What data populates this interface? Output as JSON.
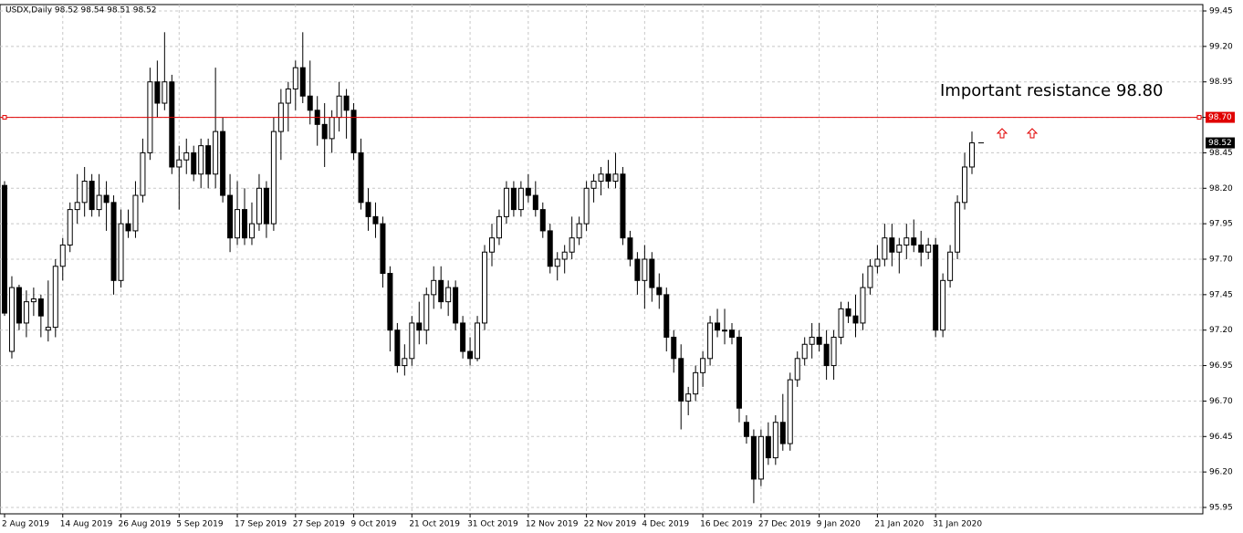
{
  "chart_data": {
    "type": "candlestick",
    "title": "USDX,Daily  98.52 98.54 98.51 98.52",
    "categories": [
      "2 Aug 2019",
      null,
      null,
      null,
      null,
      null,
      null,
      null,
      "14 Aug 2019",
      null,
      null,
      null,
      null,
      null,
      null,
      null,
      "26 Aug 2019",
      null,
      null,
      null,
      null,
      null,
      null,
      null,
      "5 Sep 2019",
      null,
      null,
      null,
      null,
      null,
      null,
      null,
      "17 Sep 2019",
      null,
      null,
      null,
      null,
      null,
      null,
      null,
      "27 Sep 2019",
      null,
      null,
      null,
      null,
      null,
      null,
      null,
      "9 Oct 2019",
      null,
      null,
      null,
      null,
      null,
      null,
      null,
      "21 Oct 2019",
      null,
      null,
      null,
      null,
      null,
      null,
      null,
      "31 Oct 2019",
      null,
      null,
      null,
      null,
      null,
      null,
      null,
      "12 Nov 2019",
      null,
      null,
      null,
      null,
      null,
      null,
      null,
      "22 Nov 2019",
      null,
      null,
      null,
      null,
      null,
      null,
      null,
      "4 Dec 2019",
      null,
      null,
      null,
      null,
      null,
      null,
      null,
      "16 Dec 2019",
      null,
      null,
      null,
      null,
      null,
      null,
      null,
      "27 Dec 2019",
      null,
      null,
      null,
      null,
      null,
      null,
      null,
      "9 Jan 2020",
      null,
      null,
      null,
      null,
      null,
      null,
      null,
      "21 Jan 2020",
      null,
      null,
      null,
      null,
      null,
      null,
      null,
      "31 Jan 2020",
      null,
      null,
      null,
      null,
      null
    ],
    "open": [
      98.22,
      97.05,
      97.5,
      97.25,
      97.4,
      97.42,
      97.2,
      97.22,
      97.65,
      97.8,
      98.05,
      98.1,
      98.25,
      98.05,
      98.15,
      98.1,
      97.55,
      97.95,
      97.9,
      98.15,
      98.45,
      98.95,
      98.8,
      98.95,
      98.35,
      98.4,
      98.45,
      98.3,
      98.5,
      98.3,
      98.6,
      98.15,
      97.85,
      98.05,
      97.85,
      97.95,
      98.2,
      97.95,
      98.6,
      98.8,
      98.9,
      99.05,
      98.85,
      98.75,
      98.65,
      98.55,
      98.7,
      98.85,
      98.75,
      98.45,
      98.1,
      98.0,
      97.95,
      97.6,
      97.2,
      96.95,
      97.0,
      97.25,
      97.2,
      97.45,
      97.55,
      97.4,
      97.5,
      97.25,
      97.05,
      97.0,
      97.25,
      97.75,
      97.85,
      98.0,
      98.2,
      98.05,
      98.2,
      98.15,
      98.05,
      97.9,
      97.65,
      97.7,
      97.75,
      97.85,
      97.95,
      98.2,
      98.25,
      98.3,
      98.25,
      98.3,
      97.85,
      97.7,
      97.55,
      97.7,
      97.5,
      97.45,
      97.15,
      97.0,
      96.7,
      96.75,
      96.9,
      97.0,
      97.25,
      97.2,
      97.2,
      97.15,
      96.55,
      96.45,
      96.15,
      96.45,
      96.3,
      96.55,
      96.4,
      96.85,
      97.0,
      97.1,
      97.15,
      97.1,
      96.95,
      97.15,
      97.35,
      97.3,
      97.25,
      97.5,
      97.65,
      97.7,
      97.85,
      97.75,
      97.8,
      97.85,
      97.8,
      97.75,
      97.8,
      97.2,
      97.55,
      97.75,
      98.1,
      98.35
    ],
    "high": [
      98.25,
      97.58,
      97.52,
      97.48,
      97.5,
      97.45,
      97.55,
      97.7,
      97.85,
      98.1,
      98.3,
      98.35,
      98.3,
      98.3,
      98.25,
      98.15,
      98.05,
      98.05,
      98.25,
      98.55,
      99.05,
      99.1,
      99.3,
      99.0,
      98.5,
      98.55,
      98.5,
      98.55,
      98.55,
      99.05,
      98.7,
      98.3,
      98.25,
      98.2,
      98.1,
      98.3,
      98.25,
      98.7,
      98.9,
      98.95,
      99.1,
      99.3,
      99.1,
      98.85,
      98.8,
      98.75,
      98.95,
      98.9,
      98.8,
      98.55,
      98.2,
      98.1,
      98.0,
      97.65,
      97.25,
      97.1,
      97.3,
      97.4,
      97.5,
      97.65,
      97.65,
      97.55,
      97.55,
      97.3,
      97.15,
      97.3,
      97.8,
      97.95,
      98.05,
      98.25,
      98.25,
      98.25,
      98.3,
      98.25,
      98.1,
      97.95,
      97.75,
      97.8,
      98.0,
      98.0,
      98.25,
      98.3,
      98.35,
      98.4,
      98.45,
      98.35,
      97.9,
      97.75,
      97.8,
      97.75,
      97.6,
      97.5,
      97.2,
      97.1,
      96.8,
      96.95,
      97.05,
      97.3,
      97.35,
      97.35,
      97.25,
      97.2,
      96.6,
      96.5,
      96.5,
      96.55,
      96.6,
      96.75,
      96.9,
      97.05,
      97.15,
      97.25,
      97.25,
      97.2,
      97.2,
      97.4,
      97.4,
      97.45,
      97.6,
      97.7,
      97.8,
      97.95,
      97.95,
      97.85,
      97.95,
      97.98,
      97.9,
      97.85,
      97.85,
      97.6,
      97.8,
      98.15,
      98.45,
      98.6
    ],
    "low": [
      97.3,
      97.0,
      97.2,
      97.15,
      97.3,
      97.15,
      97.12,
      97.15,
      97.55,
      97.75,
      97.95,
      98.0,
      98.0,
      98.0,
      97.9,
      97.45,
      97.5,
      97.85,
      97.85,
      98.1,
      98.4,
      98.7,
      98.75,
      98.3,
      98.05,
      98.3,
      98.25,
      98.2,
      98.2,
      98.2,
      98.1,
      97.75,
      97.8,
      97.8,
      97.8,
      97.9,
      97.85,
      97.9,
      98.4,
      98.6,
      98.75,
      98.8,
      98.65,
      98.5,
      98.35,
      98.45,
      98.6,
      98.55,
      98.4,
      98.05,
      97.9,
      97.85,
      97.5,
      97.05,
      96.9,
      96.88,
      96.95,
      97.1,
      97.1,
      97.35,
      97.35,
      97.3,
      97.2,
      97.0,
      96.95,
      96.98,
      97.2,
      97.65,
      97.8,
      97.95,
      98.0,
      98.0,
      98.1,
      98.0,
      97.85,
      97.6,
      97.55,
      97.6,
      97.7,
      97.8,
      97.9,
      98.1,
      98.15,
      98.2,
      98.2,
      97.8,
      97.65,
      97.45,
      97.35,
      97.4,
      97.35,
      97.05,
      96.9,
      96.5,
      96.6,
      96.7,
      96.8,
      96.95,
      97.15,
      97.1,
      97.1,
      96.55,
      96.4,
      95.98,
      96.1,
      96.25,
      96.25,
      96.35,
      96.35,
      96.8,
      96.95,
      97.0,
      97.05,
      96.85,
      96.85,
      97.1,
      97.25,
      97.15,
      97.2,
      97.45,
      97.6,
      97.65,
      97.65,
      97.6,
      97.7,
      97.75,
      97.65,
      97.7,
      97.15,
      97.15,
      97.5,
      97.7,
      98.05,
      98.3
    ],
    "close": [
      97.32,
      97.5,
      97.25,
      97.4,
      97.42,
      97.3,
      97.22,
      97.65,
      97.8,
      98.05,
      98.1,
      98.25,
      98.05,
      98.15,
      98.1,
      97.55,
      97.95,
      97.9,
      98.15,
      98.45,
      98.95,
      98.8,
      98.95,
      98.35,
      98.4,
      98.45,
      98.3,
      98.5,
      98.3,
      98.6,
      98.15,
      97.85,
      98.05,
      97.85,
      97.95,
      98.2,
      97.95,
      98.6,
      98.8,
      98.9,
      99.05,
      98.85,
      98.75,
      98.65,
      98.55,
      98.7,
      98.85,
      98.75,
      98.45,
      98.1,
      98.0,
      97.95,
      97.6,
      97.2,
      96.95,
      97.0,
      97.25,
      97.2,
      97.45,
      97.55,
      97.4,
      97.5,
      97.25,
      97.05,
      97.0,
      97.25,
      97.75,
      97.85,
      98.0,
      98.2,
      98.05,
      98.2,
      98.15,
      98.05,
      97.9,
      97.65,
      97.7,
      97.75,
      97.85,
      97.95,
      98.2,
      98.25,
      98.3,
      98.25,
      98.3,
      97.85,
      97.7,
      97.55,
      97.7,
      97.5,
      97.45,
      97.15,
      97.0,
      96.7,
      96.75,
      96.9,
      97.0,
      97.25,
      97.2,
      97.2,
      97.15,
      96.65,
      96.45,
      96.15,
      96.45,
      96.3,
      96.55,
      96.4,
      96.85,
      97.0,
      97.1,
      97.15,
      97.1,
      96.95,
      97.15,
      97.35,
      97.3,
      97.25,
      97.5,
      97.65,
      97.7,
      97.85,
      97.75,
      97.8,
      97.85,
      97.8,
      97.75,
      97.8,
      97.2,
      97.55,
      97.75,
      98.1,
      98.35,
      98.52
    ],
    "up_color": "#ffffff",
    "down_color": "#000000",
    "wick_color": "#000000",
    "ylim": [
      95.95,
      99.45
    ],
    "yticks": [
      95.95,
      {
        "value": 96.2,
        "label": "96.20"
      },
      96.45,
      {
        "value": 96.7,
        "label": "96.70"
      },
      96.95,
      {
        "value": 97.2,
        "label": "97.20"
      },
      97.45,
      {
        "value": 97.7,
        "label": "97.70"
      },
      97.95,
      {
        "value": 98.2,
        "label": "98.20"
      },
      98.45,
      {
        "value": 98.7,
        "label": "98.70"
      },
      98.95,
      {
        "value": 99.2,
        "label": "99.20"
      },
      99.45
    ],
    "grid": true,
    "hline": {
      "value": 98.7,
      "label": "98.70",
      "color": "#e00000"
    },
    "last_price": 98.52,
    "annotation": "Important resistance  98.80",
    "annotation_color": "#d6204e"
  }
}
